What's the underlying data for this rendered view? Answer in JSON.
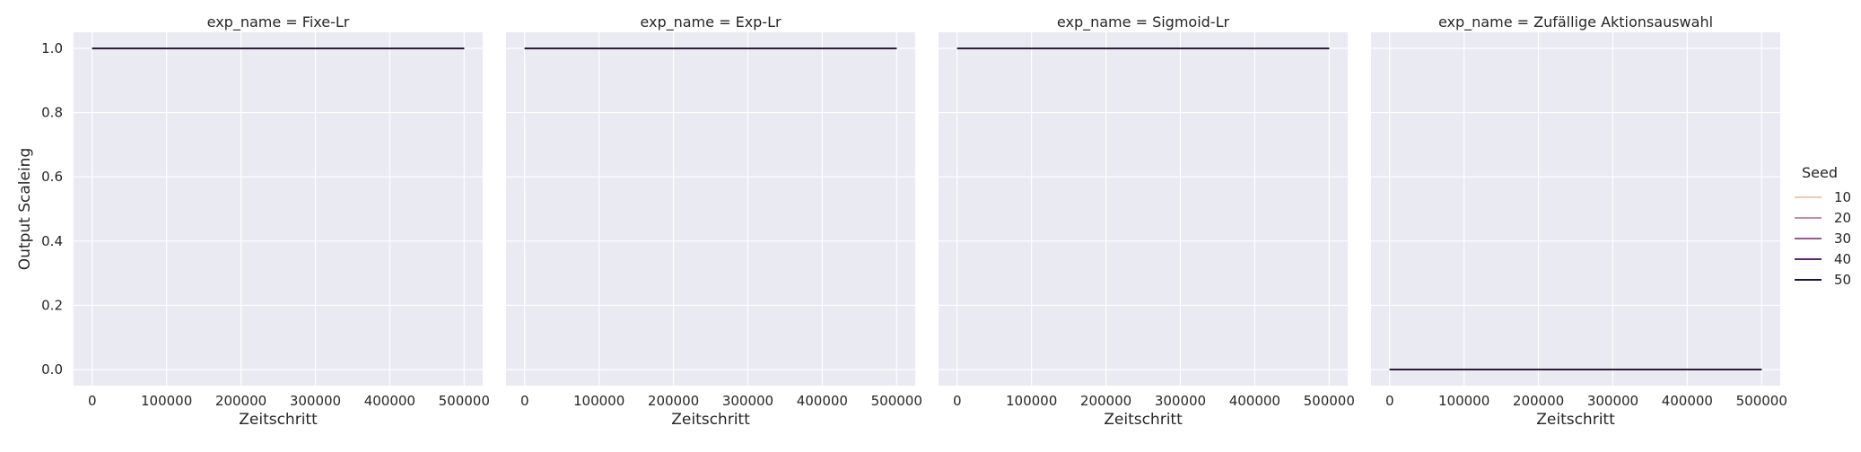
{
  "chart_data": {
    "type": "line",
    "ylabel": "Output Scaleing",
    "xlabel": "Zeitschritt",
    "xlim": [
      -25000,
      525000
    ],
    "ylim": [
      -0.05,
      1.05
    ],
    "x_ticks": [
      0,
      100000,
      200000,
      300000,
      400000,
      500000
    ],
    "x_tick_labels": [
      "0",
      "100000",
      "200000",
      "300000",
      "400000",
      "500000"
    ],
    "y_ticks": [
      0.0,
      0.2,
      0.4,
      0.6,
      0.8,
      1.0
    ],
    "y_tick_labels": [
      "0.0",
      "0.2",
      "0.4",
      "0.6",
      "0.8",
      "1.0"
    ],
    "grid": true,
    "legend": {
      "title": "Seed",
      "placement": "right",
      "entries": [
        {
          "label": "10",
          "color": "#ebc9bd"
        },
        {
          "label": "20",
          "color": "#c98aa6"
        },
        {
          "label": "30",
          "color": "#9a5a91"
        },
        {
          "label": "40",
          "color": "#5e2a6b"
        },
        {
          "label": "50",
          "color": "#1f1530"
        }
      ]
    },
    "panels": [
      {
        "title": "exp_name = Fixe-Lr",
        "series": [
          {
            "name": "10",
            "x": [
              0,
              500000
            ],
            "y": [
              1.0,
              1.0
            ]
          },
          {
            "name": "20",
            "x": [
              0,
              500000
            ],
            "y": [
              1.0,
              1.0
            ]
          },
          {
            "name": "30",
            "x": [
              0,
              500000
            ],
            "y": [
              1.0,
              1.0
            ]
          },
          {
            "name": "40",
            "x": [
              0,
              500000
            ],
            "y": [
              1.0,
              1.0
            ]
          },
          {
            "name": "50",
            "x": [
              0,
              500000
            ],
            "y": [
              1.0,
              1.0
            ]
          }
        ]
      },
      {
        "title": "exp_name = Exp-Lr",
        "series": [
          {
            "name": "10",
            "x": [
              0,
              500000
            ],
            "y": [
              1.0,
              1.0
            ]
          },
          {
            "name": "20",
            "x": [
              0,
              500000
            ],
            "y": [
              1.0,
              1.0
            ]
          },
          {
            "name": "30",
            "x": [
              0,
              500000
            ],
            "y": [
              1.0,
              1.0
            ]
          },
          {
            "name": "40",
            "x": [
              0,
              500000
            ],
            "y": [
              1.0,
              1.0
            ]
          },
          {
            "name": "50",
            "x": [
              0,
              500000
            ],
            "y": [
              1.0,
              1.0
            ]
          }
        ]
      },
      {
        "title": "exp_name = Sigmoid-Lr",
        "series": [
          {
            "name": "10",
            "x": [
              0,
              500000
            ],
            "y": [
              1.0,
              1.0
            ]
          },
          {
            "name": "20",
            "x": [
              0,
              500000
            ],
            "y": [
              1.0,
              1.0
            ]
          },
          {
            "name": "30",
            "x": [
              0,
              500000
            ],
            "y": [
              1.0,
              1.0
            ]
          },
          {
            "name": "40",
            "x": [
              0,
              500000
            ],
            "y": [
              1.0,
              1.0
            ]
          },
          {
            "name": "50",
            "x": [
              0,
              500000
            ],
            "y": [
              1.0,
              1.0
            ]
          }
        ]
      },
      {
        "title": "exp_name = Zufällige Aktionsauswahl",
        "series": [
          {
            "name": "10",
            "x": [
              0,
              500000
            ],
            "y": [
              0.0,
              0.0
            ]
          },
          {
            "name": "20",
            "x": [
              0,
              500000
            ],
            "y": [
              0.0,
              0.0
            ]
          },
          {
            "name": "30",
            "x": [
              0,
              500000
            ],
            "y": [
              0.0,
              0.0
            ]
          },
          {
            "name": "40",
            "x": [
              0,
              500000
            ],
            "y": [
              0.0,
              0.0
            ]
          },
          {
            "name": "50",
            "x": [
              0,
              500000
            ],
            "y": [
              0.0,
              0.0
            ]
          }
        ]
      }
    ]
  }
}
